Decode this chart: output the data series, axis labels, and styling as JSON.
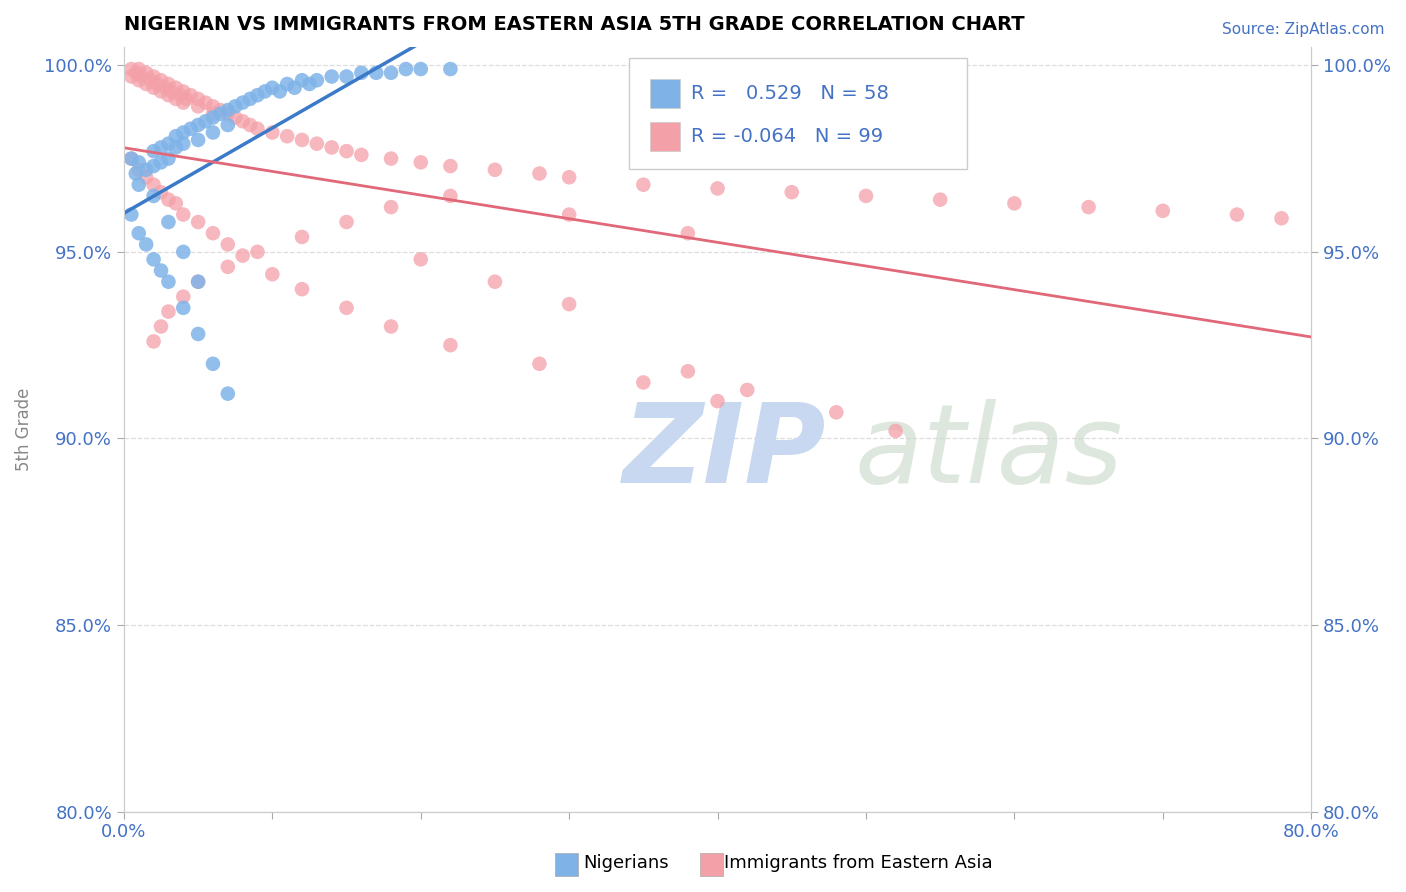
{
  "title": "NIGERIAN VS IMMIGRANTS FROM EASTERN ASIA 5TH GRADE CORRELATION CHART",
  "source_text": "Source: ZipAtlas.com",
  "ylabel": "5th Grade",
  "x_min": 0.0,
  "x_max": 0.8,
  "y_min": 0.8,
  "y_max": 1.005,
  "y_ticks": [
    0.8,
    0.85,
    0.9,
    0.95,
    1.0
  ],
  "y_tick_labels": [
    "80.0%",
    "85.0%",
    "90.0%",
    "95.0%",
    "100.0%"
  ],
  "x_ticks": [
    0.0,
    0.1,
    0.2,
    0.3,
    0.4,
    0.5,
    0.6,
    0.7,
    0.8
  ],
  "r_nigerian": 0.529,
  "n_nigerian": 58,
  "r_eastern_asia": -0.064,
  "n_eastern_asia": 99,
  "color_nigerian": "#7FB3E8",
  "color_eastern_asia": "#F4A0A8",
  "color_trendline_nigerian": "#3A7AC8",
  "color_trendline_eastern_asia": "#E06878",
  "watermark_color": "#C8D8F0",
  "nigerian_x": [
    0.005,
    0.008,
    0.01,
    0.01,
    0.015,
    0.02,
    0.02,
    0.025,
    0.025,
    0.03,
    0.03,
    0.035,
    0.035,
    0.04,
    0.04,
    0.045,
    0.05,
    0.05,
    0.055,
    0.06,
    0.06,
    0.065,
    0.07,
    0.07,
    0.075,
    0.08,
    0.085,
    0.09,
    0.095,
    0.1,
    0.105,
    0.11,
    0.115,
    0.12,
    0.125,
    0.13,
    0.14,
    0.15,
    0.16,
    0.17,
    0.18,
    0.19,
    0.2,
    0.22,
    0.005,
    0.01,
    0.015,
    0.02,
    0.025,
    0.03,
    0.04,
    0.05,
    0.06,
    0.07,
    0.02,
    0.03,
    0.04,
    0.05
  ],
  "nigerian_y": [
    0.975,
    0.971,
    0.968,
    0.974,
    0.972,
    0.977,
    0.973,
    0.978,
    0.974,
    0.979,
    0.975,
    0.981,
    0.978,
    0.982,
    0.979,
    0.983,
    0.984,
    0.98,
    0.985,
    0.986,
    0.982,
    0.987,
    0.988,
    0.984,
    0.989,
    0.99,
    0.991,
    0.992,
    0.993,
    0.994,
    0.993,
    0.995,
    0.994,
    0.996,
    0.995,
    0.996,
    0.997,
    0.997,
    0.998,
    0.998,
    0.998,
    0.999,
    0.999,
    0.999,
    0.96,
    0.955,
    0.952,
    0.948,
    0.945,
    0.942,
    0.935,
    0.928,
    0.92,
    0.912,
    0.965,
    0.958,
    0.95,
    0.942
  ],
  "eastern_asia_x": [
    0.005,
    0.005,
    0.008,
    0.01,
    0.01,
    0.012,
    0.015,
    0.015,
    0.018,
    0.02,
    0.02,
    0.022,
    0.025,
    0.025,
    0.028,
    0.03,
    0.03,
    0.032,
    0.035,
    0.035,
    0.038,
    0.04,
    0.04,
    0.042,
    0.045,
    0.05,
    0.05,
    0.055,
    0.06,
    0.06,
    0.065,
    0.07,
    0.075,
    0.08,
    0.085,
    0.09,
    0.1,
    0.11,
    0.12,
    0.13,
    0.14,
    0.15,
    0.16,
    0.18,
    0.2,
    0.22,
    0.25,
    0.28,
    0.3,
    0.35,
    0.4,
    0.45,
    0.5,
    0.55,
    0.6,
    0.65,
    0.7,
    0.75,
    0.78,
    0.005,
    0.01,
    0.015,
    0.02,
    0.025,
    0.03,
    0.035,
    0.04,
    0.05,
    0.06,
    0.07,
    0.08,
    0.1,
    0.12,
    0.15,
    0.18,
    0.22,
    0.28,
    0.35,
    0.4,
    0.3,
    0.25,
    0.2,
    0.38,
    0.42,
    0.48,
    0.52,
    0.38,
    0.3,
    0.22,
    0.18,
    0.15,
    0.12,
    0.09,
    0.07,
    0.05,
    0.04,
    0.03,
    0.025,
    0.02
  ],
  "eastern_asia_y": [
    0.999,
    0.997,
    0.998,
    0.999,
    0.996,
    0.997,
    0.998,
    0.995,
    0.996,
    0.997,
    0.994,
    0.995,
    0.996,
    0.993,
    0.994,
    0.995,
    0.992,
    0.993,
    0.994,
    0.991,
    0.992,
    0.993,
    0.99,
    0.991,
    0.992,
    0.991,
    0.989,
    0.99,
    0.989,
    0.987,
    0.988,
    0.987,
    0.986,
    0.985,
    0.984,
    0.983,
    0.982,
    0.981,
    0.98,
    0.979,
    0.978,
    0.977,
    0.976,
    0.975,
    0.974,
    0.973,
    0.972,
    0.971,
    0.97,
    0.968,
    0.967,
    0.966,
    0.965,
    0.964,
    0.963,
    0.962,
    0.961,
    0.96,
    0.959,
    0.975,
    0.972,
    0.97,
    0.968,
    0.966,
    0.964,
    0.963,
    0.96,
    0.958,
    0.955,
    0.952,
    0.949,
    0.944,
    0.94,
    0.935,
    0.93,
    0.925,
    0.92,
    0.915,
    0.91,
    0.936,
    0.942,
    0.948,
    0.918,
    0.913,
    0.907,
    0.902,
    0.955,
    0.96,
    0.965,
    0.962,
    0.958,
    0.954,
    0.95,
    0.946,
    0.942,
    0.938,
    0.934,
    0.93,
    0.926
  ]
}
